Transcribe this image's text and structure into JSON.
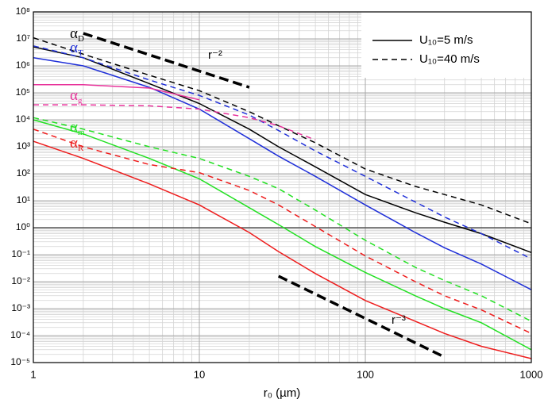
{
  "chart_data": {
    "type": "line",
    "x_label": "r₀ (µm)",
    "log_x": true,
    "log_y": true,
    "grid": true,
    "xlim": [
      1,
      1000
    ],
    "xticks": [
      1,
      10,
      100,
      1000
    ],
    "ylim": [
      1e-05,
      100000000
    ],
    "yticks": [
      {
        "value": 1e-05,
        "label": "10⁻⁵"
      },
      {
        "value": 0.0001,
        "label": "10⁻⁴"
      },
      {
        "value": 0.001,
        "label": "10⁻³"
      },
      {
        "value": 0.01,
        "label": "10⁻²"
      },
      {
        "value": 0.1,
        "label": "10⁻¹"
      },
      {
        "value": 1,
        "label": "10⁰"
      },
      {
        "value": 10,
        "label": "10¹"
      },
      {
        "value": 100,
        "label": "10²"
      },
      {
        "value": 1000,
        "label": "10³"
      },
      {
        "value": 10000,
        "label": "10⁴"
      },
      {
        "value": 100000,
        "label": "10⁵"
      },
      {
        "value": 1000000,
        "label": "10⁶"
      },
      {
        "value": 10000000,
        "label": "10⁷"
      },
      {
        "value": 100000000,
        "label": "10⁸"
      }
    ],
    "hline": 1,
    "x": [
      1,
      2,
      5,
      10,
      20,
      30,
      50,
      100,
      200,
      300,
      500,
      1000
    ],
    "series": [
      {
        "color": "#000000",
        "dashed": false,
        "values": [
          5000000,
          2000000,
          220000,
          40000,
          4500,
          1000,
          180,
          17,
          3.6,
          1.6,
          0.6,
          0.12
        ]
      },
      {
        "color": "#000000",
        "dashed": true,
        "values": [
          11000000,
          2700000,
          450000,
          120000,
          20000,
          6000,
          1400,
          150,
          34,
          17,
          7,
          1.4
        ]
      },
      {
        "color": "#1f2fd8",
        "dashed": false,
        "values": [
          2000000,
          1000000,
          160000,
          25000,
          2000,
          450,
          80,
          7,
          0.66,
          0.18,
          0.045,
          0.005
        ]
      },
      {
        "color": "#1f2fd8",
        "dashed": true,
        "values": [
          5500000,
          2000000,
          300000,
          80000,
          15000,
          4000,
          700,
          80,
          9,
          2.5,
          0.6,
          0.07
        ]
      },
      {
        "color": "#e8339b",
        "dashed": false,
        "values": [
          200000,
          200000,
          150000,
          55000,
          null,
          null,
          null,
          null,
          null,
          null,
          null,
          null
        ]
      },
      {
        "color": "#e8339b",
        "dashed": true,
        "values": [
          36000,
          36000,
          33000,
          25000,
          12000,
          6000,
          1800,
          null,
          null,
          null,
          null,
          null
        ]
      },
      {
        "color": "#22e022",
        "dashed": false,
        "values": [
          10000,
          3000,
          370,
          65,
          5.5,
          1.3,
          0.2,
          0.022,
          0.003,
          0.001,
          0.0003,
          3e-05
        ]
      },
      {
        "color": "#22e022",
        "dashed": true,
        "values": [
          12000,
          4500,
          1000,
          370,
          80,
          28,
          4.5,
          0.34,
          0.034,
          0.011,
          0.003,
          0.00034
        ]
      },
      {
        "color": "#ee1c1c",
        "dashed": false,
        "values": [
          1600,
          370,
          42,
          7,
          0.66,
          0.13,
          0.02,
          0.002,
          0.00034,
          0.00012,
          4e-05,
          1.4e-05
        ]
      },
      {
        "color": "#ee1c1c",
        "dashed": true,
        "values": [
          4500,
          1000,
          220,
          110,
          24,
          7,
          1.1,
          0.09,
          0.01,
          0.003,
          0.0009,
          0.00012
        ]
      }
    ],
    "reference_lines": [
      {
        "label": "r⁻²",
        "x": [
          2,
          20
        ],
        "y": [
          16000000,
          160000
        ]
      },
      {
        "label": "r⁻³",
        "x": [
          30,
          300
        ],
        "y": [
          0.016,
          1.6e-05
        ]
      }
    ],
    "annotations": [
      {
        "text": "α",
        "sub": "D",
        "color": "#000000"
      },
      {
        "text": "α",
        "sub": "T",
        "color": "#1f2fd8"
      },
      {
        "text": "α",
        "sub": "g",
        "color": "#e8339b"
      },
      {
        "text": "α",
        "sub": "m",
        "color": "#22e022"
      },
      {
        "text": "α",
        "sub": "R",
        "color": "#ee1c1c"
      }
    ],
    "legend": {
      "position": "upper right",
      "entries": [
        {
          "label": "U₁₀=5 m/s",
          "dashed": false
        },
        {
          "label": "U₁₀=40 m/s",
          "dashed": true
        }
      ]
    }
  }
}
